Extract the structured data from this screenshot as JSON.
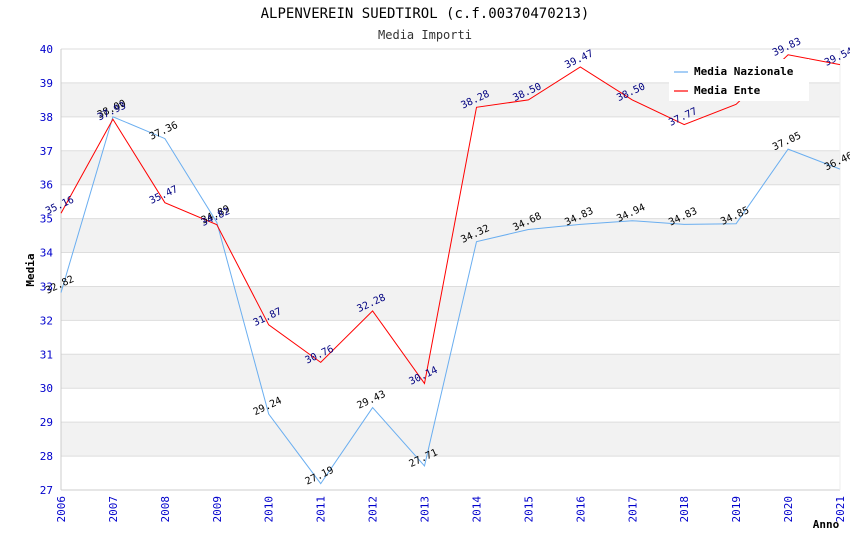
{
  "chart_data": {
    "type": "line",
    "title": "ALPENVEREIN SUEDTIROL (c.f.00370470213)",
    "subtitle": "Media Importi",
    "xlabel": "Anno",
    "ylabel": "Media",
    "ylim": [
      27,
      40
    ],
    "grid": "horizontal bands",
    "legend_position": "top-right",
    "x": [
      "2006",
      "2007",
      "2008",
      "2009",
      "2010",
      "2011",
      "2012",
      "2013",
      "2014",
      "2015",
      "2016",
      "2017",
      "2018",
      "2019",
      "2020",
      "2021"
    ],
    "series": [
      {
        "name": "Media Nazionale",
        "color": "#6aaef0",
        "label_color": "#000000",
        "values": [
          32.82,
          38.0,
          37.36,
          34.89,
          29.24,
          27.19,
          29.43,
          27.71,
          34.32,
          34.68,
          34.83,
          34.94,
          34.83,
          34.85,
          37.05,
          36.46
        ],
        "labels": [
          "32.82",
          "38.00",
          "37.36",
          "34.89",
          "29.24",
          "27.19",
          "29.43",
          "27.71",
          "34.32",
          "34.68",
          "34.83",
          "34.94",
          "34.83",
          "34.85",
          "37.05",
          "36.46"
        ]
      },
      {
        "name": "Media Ente",
        "color": "#ff0000",
        "label_color": "#000080",
        "values": [
          35.16,
          37.93,
          35.47,
          34.82,
          31.87,
          30.76,
          32.28,
          30.14,
          38.28,
          38.5,
          39.47,
          38.5,
          37.77,
          38.37,
          39.83,
          39.54
        ],
        "labels": [
          "35.16",
          "37.93",
          "35.47",
          "34.82",
          "31.87",
          "30.76",
          "32.28",
          "30.14",
          "38.28",
          "38.50",
          "39.47",
          "38.50",
          "37.77",
          "",
          "39.83",
          "39.54"
        ]
      }
    ]
  }
}
